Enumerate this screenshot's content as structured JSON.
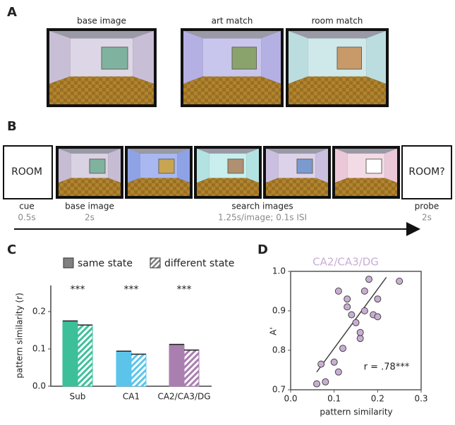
{
  "panels": {
    "a": {
      "label": "A",
      "captions": [
        "base image",
        "art match",
        "room match"
      ]
    },
    "b": {
      "label": "B",
      "cue_text": "ROOM",
      "probe_text": "ROOM?",
      "steps": [
        {
          "name": "cue",
          "duration": "0.5s"
        },
        {
          "name": "base image",
          "duration": "2s"
        },
        {
          "name": "search images",
          "duration": "1.25s/image; 0.1s ISI"
        },
        {
          "name": "probe",
          "duration": "2s"
        }
      ]
    },
    "c": {
      "label": "C"
    },
    "d": {
      "label": "D"
    }
  },
  "chart_data": [
    {
      "type": "bar",
      "ylabel": "pattern similarity (r)",
      "categories": [
        "Sub",
        "CA1",
        "CA2/CA3/DG"
      ],
      "category_colors": [
        "#3dbf9a",
        "#5cc4ea",
        "#a97fb0"
      ],
      "series": [
        {
          "name": "same state",
          "color": "#808080",
          "style": "solid",
          "values": [
            0.175,
            0.094,
            0.112
          ]
        },
        {
          "name": "different state",
          "color": "#808080",
          "style": "hatched",
          "values": [
            0.164,
            0.086,
            0.097
          ]
        }
      ],
      "annotations": [
        "***",
        "***",
        "***"
      ],
      "ylim": [
        0,
        0.27
      ],
      "yticks": [
        {
          "value": 0,
          "label": "0.0"
        },
        0.1,
        0.2
      ]
    },
    {
      "type": "scatter",
      "title": "CA2/CA3/DG",
      "title_color": "#c9aed3",
      "xlabel": "pattern similarity",
      "ylabel": "A'",
      "x": [
        0.06,
        0.08,
        0.07,
        0.1,
        0.11,
        0.12,
        0.11,
        0.13,
        0.13,
        0.15,
        0.16,
        0.16,
        0.17,
        0.17,
        0.18,
        0.19,
        0.2,
        0.2,
        0.25,
        0.14
      ],
      "values": [
        0.715,
        0.72,
        0.765,
        0.77,
        0.745,
        0.805,
        0.95,
        0.93,
        0.91,
        0.87,
        0.83,
        0.845,
        0.9,
        0.95,
        0.98,
        0.89,
        0.885,
        0.93,
        0.975,
        0.89
      ],
      "color": "#c9aed3",
      "fit_line": {
        "x": [
          0.06,
          0.22
        ],
        "y": [
          0.745,
          0.985
        ]
      },
      "annotation": "r = .78***",
      "xlim": [
        0,
        0.3
      ],
      "xticks": [
        {
          "value": 0,
          "label": "0.0"
        },
        0.1,
        0.2,
        0.3
      ],
      "ylim": [
        0.7,
        1.0
      ],
      "yticks": [
        0.7,
        0.8,
        0.9,
        {
          "value": 1,
          "label": "1.0"
        }
      ]
    }
  ]
}
